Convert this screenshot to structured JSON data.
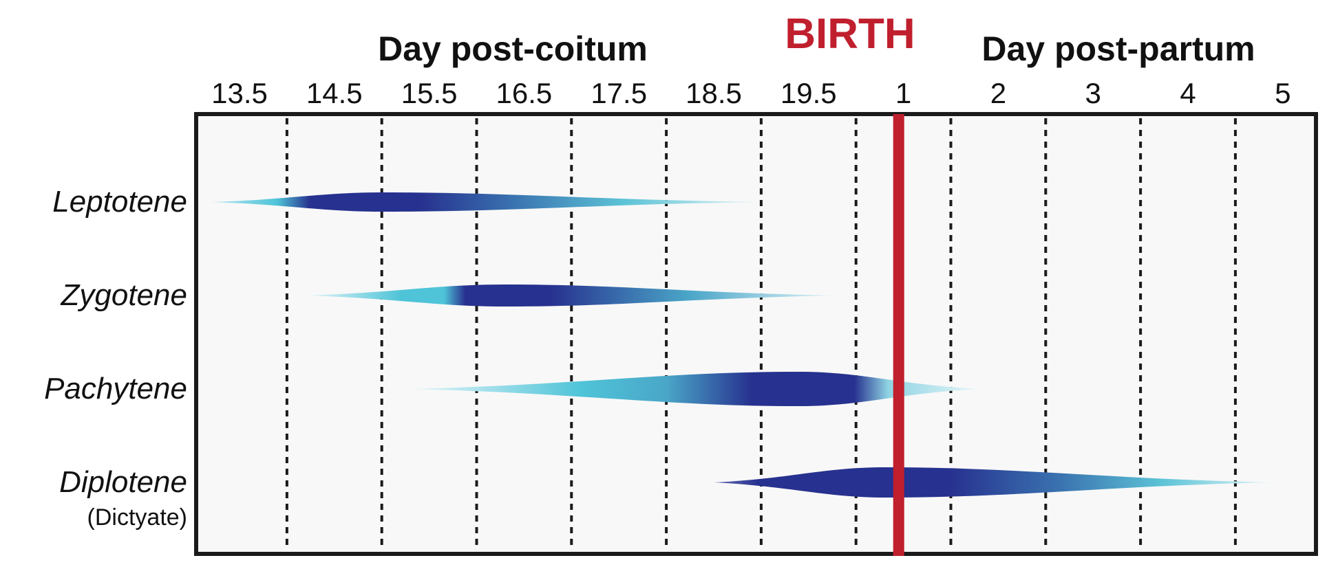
{
  "chart_data": {
    "type": "timeline",
    "header_left": "Day post-coitum",
    "header_right": "Day post-partum",
    "birth_label": "BIRTH",
    "birth_color": "#c01f2e",
    "ticks": [
      "13.5",
      "14.5",
      "15.5",
      "16.5",
      "17.5",
      "18.5",
      "19.5",
      "1",
      "2",
      "3",
      "4",
      "5"
    ],
    "birth_position": 6.95,
    "colors": {
      "light": "#d8f1f6",
      "cyan": "#4fc4d8",
      "dark": "#27318f",
      "mid": "#3a73b0"
    },
    "stages": [
      {
        "name": "Leptotene",
        "subtitle": "",
        "start": -0.3,
        "end": 5.5,
        "peak": 1.5,
        "gradient": [
          [
            0,
            "#b9e7f1"
          ],
          [
            0.12,
            "#4fc4d8"
          ],
          [
            0.18,
            "#27318f"
          ],
          [
            0.38,
            "#27318f"
          ],
          [
            0.55,
            "#3a73b0"
          ],
          [
            0.75,
            "#5cc3d6"
          ],
          [
            1,
            "#e4f5f8"
          ]
        ]
      },
      {
        "name": "Zygotene",
        "subtitle": "",
        "start": 0.7,
        "end": 6.3,
        "peak": 2.8,
        "gradient": [
          [
            0,
            "#e4f5f8"
          ],
          [
            0.18,
            "#4fc4d8"
          ],
          [
            0.26,
            "#4fc4d8"
          ],
          [
            0.3,
            "#27318f"
          ],
          [
            0.46,
            "#27318f"
          ],
          [
            0.72,
            "#4aa6c8"
          ],
          [
            1,
            "#e4f5f8"
          ]
        ]
      },
      {
        "name": "Pachytene",
        "subtitle": "",
        "start": 1.8,
        "end": 7.8,
        "peak": 5.9,
        "gradient": [
          [
            0,
            "#e6f6f9"
          ],
          [
            0.3,
            "#4fc4d8"
          ],
          [
            0.45,
            "#4aa6c8"
          ],
          [
            0.6,
            "#27318f"
          ],
          [
            0.78,
            "#27318f"
          ],
          [
            0.84,
            "#8fd4e3"
          ],
          [
            1,
            "#e6f6f9"
          ]
        ]
      },
      {
        "name": "Diplotene",
        "subtitle": "(Dictyate)",
        "start": 5.0,
        "end": 10.9,
        "peak": 6.8,
        "gradient": [
          [
            0,
            "#6a70b8"
          ],
          [
            0.08,
            "#27318f"
          ],
          [
            0.42,
            "#27318f"
          ],
          [
            0.62,
            "#3a73b0"
          ],
          [
            0.8,
            "#5cc3d6"
          ],
          [
            1,
            "#e6f6f9"
          ]
        ]
      }
    ]
  }
}
